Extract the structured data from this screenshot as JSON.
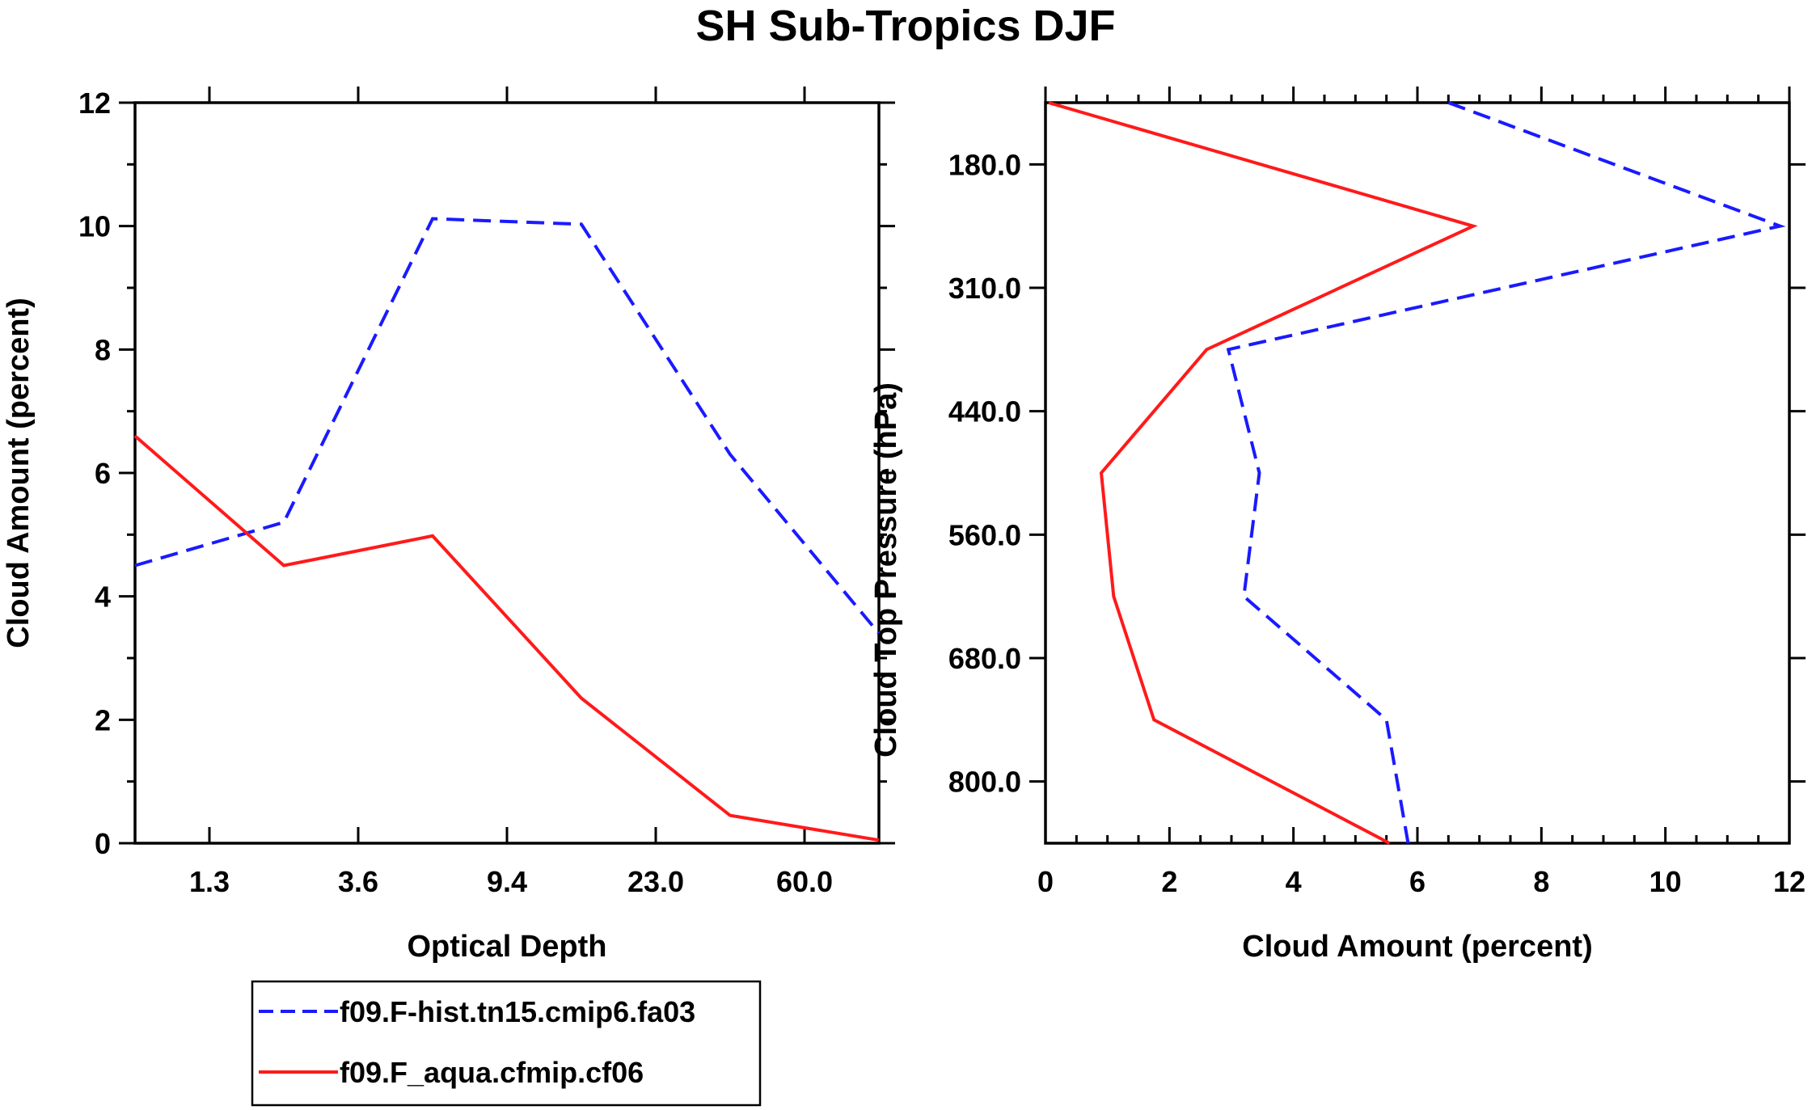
{
  "title": "SH Sub-Tropics DJF",
  "colors": {
    "blue": "#1a1aff",
    "red": "#ff1a1a",
    "axis": "#000000"
  },
  "chart_data": [
    {
      "type": "line",
      "name": "optical-depth-panel",
      "xlabel": "Optical Depth",
      "ylabel": "Cloud Amount (percent)",
      "x": [
        0.3,
        2.45,
        6.5,
        16.2,
        41.5,
        100
      ],
      "x_tick_labels": [
        "1.3",
        "3.6",
        "9.4",
        "23.0",
        "60.0"
      ],
      "y_ticks": [
        0,
        2,
        4,
        6,
        8,
        10,
        12
      ],
      "ylim": [
        0,
        12
      ],
      "series": [
        {
          "name": "f09.F-hist.tn15.cmip6.fa03",
          "style": "dashed",
          "color": "blue",
          "values": [
            4.5,
            5.2,
            10.12,
            10.03,
            6.3,
            3.4
          ]
        },
        {
          "name": "f09.F_aqua.cfmip.cf06",
          "style": "solid",
          "color": "red",
          "values": [
            6.6,
            4.5,
            4.98,
            2.35,
            0.45,
            0.05
          ]
        }
      ]
    },
    {
      "type": "line",
      "name": "pressure-panel",
      "xlabel": "Cloud Amount (percent)",
      "ylabel": "Cloud Top Pressure (hPa)",
      "xlim": [
        0,
        12
      ],
      "x_ticks": [
        0,
        2,
        4,
        6,
        8,
        10,
        12
      ],
      "y": [
        90,
        245,
        375,
        500,
        620,
        740,
        900
      ],
      "y_tick_labels": [
        "180.0",
        "310.0",
        "440.0",
        "560.0",
        "680.0",
        "800.0"
      ],
      "series": [
        {
          "name": "f09.F-hist.tn15.cmip6.fa03",
          "style": "dashed",
          "color": "blue",
          "values": [
            6.5,
            11.85,
            2.95,
            3.45,
            3.2,
            5.5,
            5.85
          ]
        },
        {
          "name": "f09.F_aqua.cfmip.cf06",
          "style": "solid",
          "color": "red",
          "values": [
            0.05,
            6.9,
            2.6,
            0.9,
            1.1,
            1.75,
            5.55
          ]
        }
      ]
    }
  ],
  "legend": [
    {
      "label": "f09.F-hist.tn15.cmip6.fa03",
      "style": "dashed",
      "color": "blue"
    },
    {
      "label": "f09.F_aqua.cfmip.cf06",
      "style": "solid",
      "color": "red"
    }
  ]
}
